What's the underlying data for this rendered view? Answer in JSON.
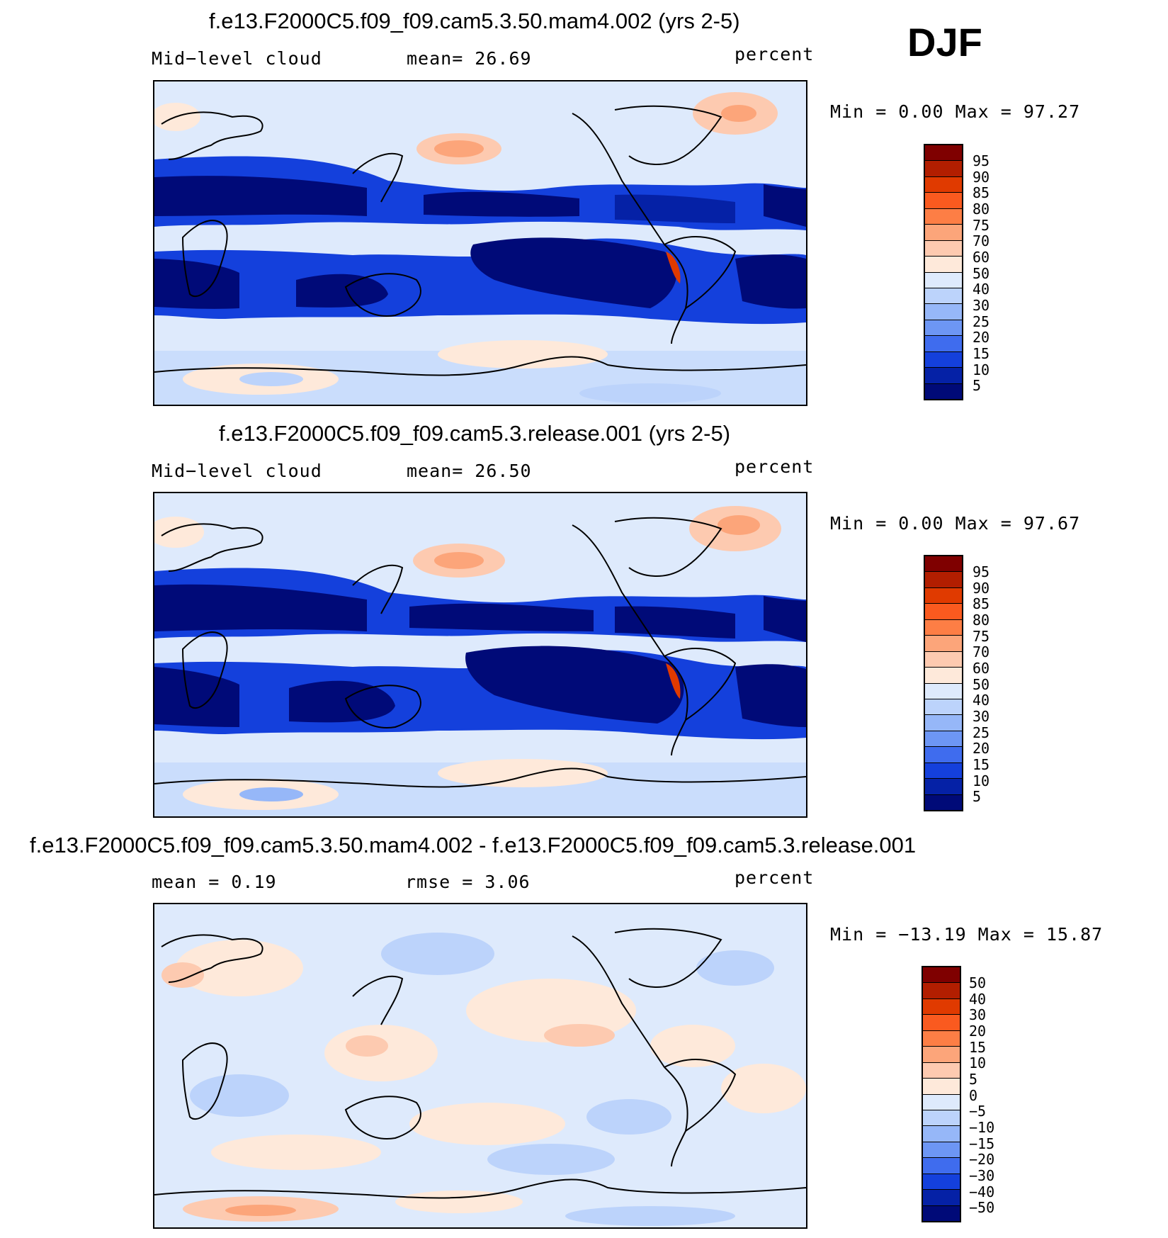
{
  "season": "DJF",
  "panels": [
    {
      "title": "f.e13.F2000C5.f09_f09.cam5.3.50.mam4.002 (yrs 2-5)",
      "left_label": "Mid−level cloud",
      "center_label": "mean=   26.69",
      "units": "percent",
      "minmax": "Min =    0.00 Max =   97.27",
      "colorbar_labels": [
        "95",
        "90",
        "85",
        "80",
        "75",
        "70",
        "60",
        "50",
        "40",
        "30",
        "25",
        "20",
        "15",
        "10",
        "5"
      ]
    },
    {
      "title": "f.e13.F2000C5.f09_f09.cam5.3.release.001 (yrs 2-5)",
      "left_label": "Mid−level cloud",
      "center_label": "mean=   26.50",
      "units": "percent",
      "minmax": "Min =    0.00 Max =   97.67",
      "colorbar_labels": [
        "95",
        "90",
        "85",
        "80",
        "75",
        "70",
        "60",
        "50",
        "40",
        "30",
        "25",
        "20",
        "15",
        "10",
        "5"
      ]
    },
    {
      "title": "f.e13.F2000C5.f09_f09.cam5.3.50.mam4.002 - f.e13.F2000C5.f09_f09.cam5.3.release.001",
      "left_label": "mean =    0.19",
      "center_label": "rmse =    3.06",
      "units": "percent",
      "minmax": "Min = −13.19 Max =   15.87",
      "colorbar_labels": [
        "50",
        "40",
        "30",
        "20",
        "15",
        "10",
        "5",
        "0",
        "−5",
        "−10",
        "−15",
        "−20",
        "−30",
        "−40",
        "−50"
      ]
    }
  ],
  "colors": {
    "scale": [
      "#7f0000",
      "#b21e00",
      "#e03a00",
      "#fa5a1f",
      "#fd7e45",
      "#fca57a",
      "#fdcab0",
      "#fee9da",
      "#deeafc",
      "#bcd3fb",
      "#96b7f8",
      "#6d96f4",
      "#3f6cee",
      "#1440dc",
      "#0521a6",
      "#000a78"
    ]
  }
}
